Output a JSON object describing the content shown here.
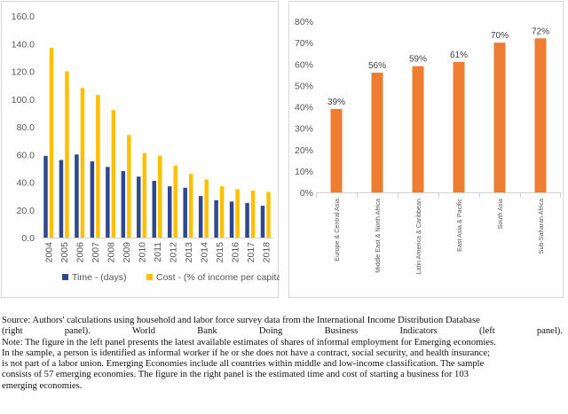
{
  "chart_data": [
    {
      "type": "bar",
      "categories": [
        "2004",
        "2005",
        "2006",
        "2007",
        "2008",
        "2009",
        "2010",
        "2011",
        "2012",
        "2013",
        "2014",
        "2015",
        "2016",
        "2017",
        "2018"
      ],
      "series": [
        {
          "name": "Time - (days)",
          "color": "#2E4A8C",
          "values": [
            59,
            56,
            60,
            55,
            51,
            48,
            44,
            41,
            37,
            36,
            30,
            27,
            26,
            25,
            23
          ]
        },
        {
          "name": "Cost - (% of income per capita)",
          "color": "#FFC000",
          "values": [
            137,
            120,
            108,
            103,
            92,
            74,
            61,
            59,
            52,
            46,
            42,
            37,
            35,
            34,
            33
          ]
        }
      ],
      "yticks": [
        "0.0",
        "20.0",
        "40.0",
        "60.0",
        "80.0",
        "100.0",
        "120.0",
        "140.0",
        "160.0"
      ],
      "ylim": [
        0,
        160
      ],
      "title": "",
      "xlabel": "",
      "ylabel": "",
      "legend": "bottom"
    },
    {
      "type": "bar",
      "categories": [
        "Europe & Central Asia",
        "Middle East & North Africa",
        "Latin America & Caribbean",
        "East Asia & Pacific",
        "South Asia",
        "Sub-Saharan Africa"
      ],
      "values": [
        39,
        56,
        59,
        61,
        70,
        72
      ],
      "data_labels": [
        "39%",
        "56%",
        "59%",
        "61%",
        "70%",
        "72%"
      ],
      "color": "#ED7D31",
      "yticks": [
        "0%",
        "10%",
        "20%",
        "30%",
        "40%",
        "50%",
        "60%",
        "70%",
        "80%"
      ],
      "ylim": [
        0,
        80
      ],
      "title": "",
      "xlabel": "",
      "ylabel": ""
    }
  ],
  "caption": {
    "line1": "Source: Authors' calculations using household and labor force survey data from the International Income Distribution Database",
    "line2": "(right panel). World Bank Doing Business Indicators (left panel).",
    "line3": "Note: The figure in the left panel presents the latest available estimates of shares of informal employment for Emerging economies.",
    "line4": "In the sample, a person is identified as informal worker if he or she does not have a contract, social security, and health insurance;",
    "line5": "is not part of a labor union. Emerging Economies include all countries within middle and low-income classification. The sample",
    "line6": "consists of 57 emerging economies. The figure in the right panel is the estimated time and cost of starting a business for 103",
    "line7": "emerging economies."
  }
}
